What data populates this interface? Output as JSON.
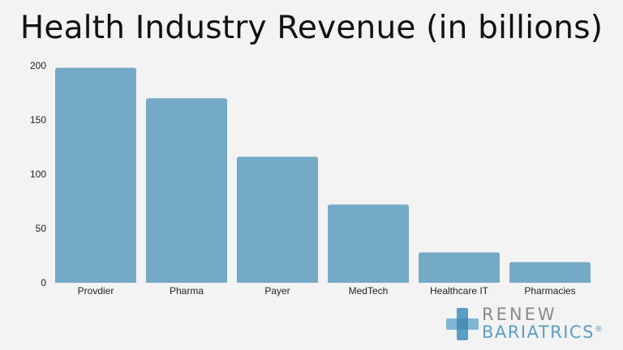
{
  "title": "Health Industry Revenue (in billions)",
  "logo": {
    "line1": "RENEW",
    "line2": "BARIATRICS",
    "reg": "®"
  },
  "colors": {
    "bar": "#75aac6",
    "background": "#f3f3f3",
    "text": "#111111",
    "logo_gray": "#8a8a8a",
    "logo_blue": "#5b9ec5"
  },
  "chart_data": {
    "type": "bar",
    "title": "Health Industry Revenue (in billions)",
    "xlabel": "",
    "ylabel": "",
    "categories": [
      "Provdier",
      "Pharma",
      "Payer",
      "MedTech",
      "Healthcare IT",
      "Pharmacies"
    ],
    "values": [
      198,
      170,
      116,
      72,
      28,
      19
    ],
    "ylim": [
      0,
      200
    ],
    "yticks": [
      0,
      50,
      100,
      150,
      200
    ],
    "grid": false,
    "legend": "none"
  }
}
